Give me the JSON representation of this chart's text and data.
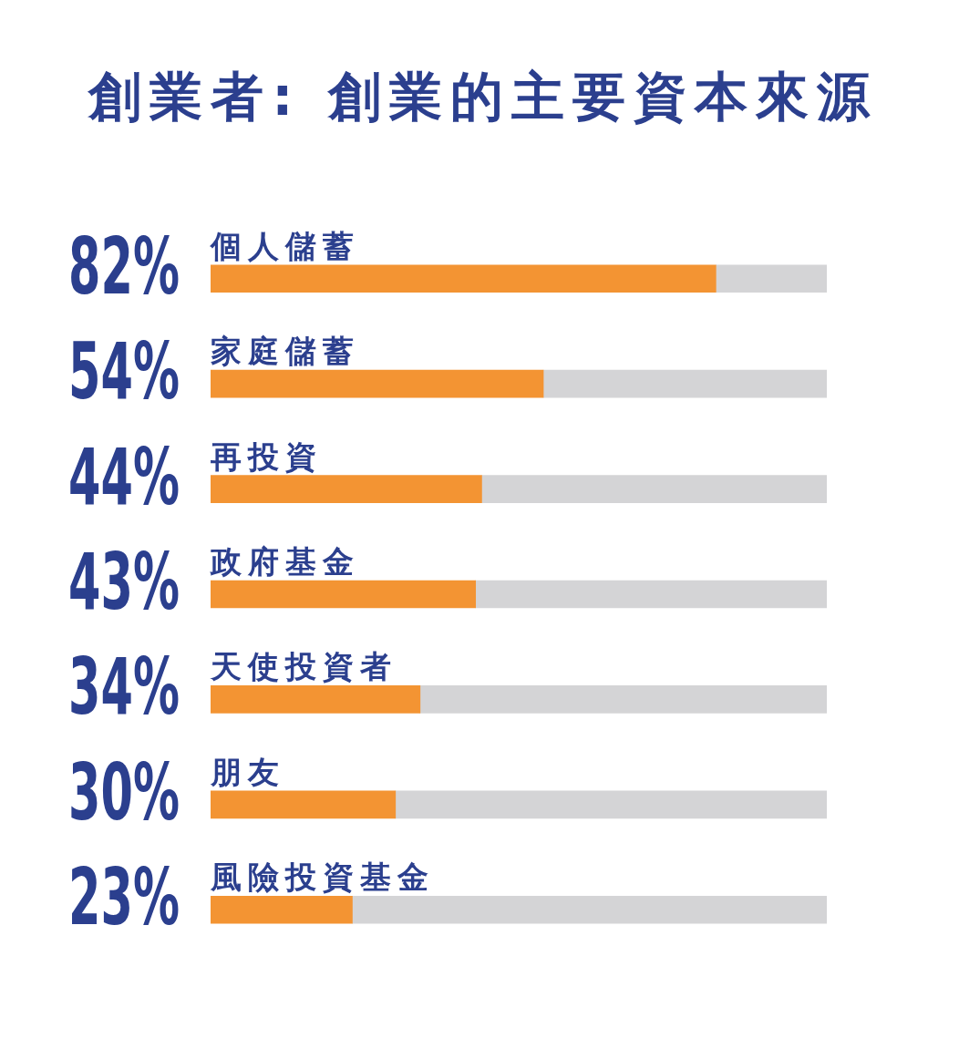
{
  "chart_data": {
    "type": "bar",
    "orientation": "horizontal",
    "stacked": true,
    "title": "創業者: 創業的主要資本來源",
    "categories": [
      "個人儲蓄",
      "家庭儲蓄",
      "再投資",
      "政府基金",
      "天使投資者",
      "朋友",
      "風險投資基金"
    ],
    "series": [
      {
        "color": "#f39433",
        "values": [
          82,
          54,
          44,
          43,
          34,
          30,
          23
        ],
        "value_labels": [
          "82%",
          "54%",
          "44%",
          "43%",
          "34%",
          "30%",
          "23%"
        ]
      },
      {
        "color": "#d4d4d6",
        "values": [
          18,
          46,
          56,
          57,
          66,
          70,
          77
        ]
      }
    ],
    "xlim": [
      0,
      100
    ],
    "tick_labels": "y"
  }
}
